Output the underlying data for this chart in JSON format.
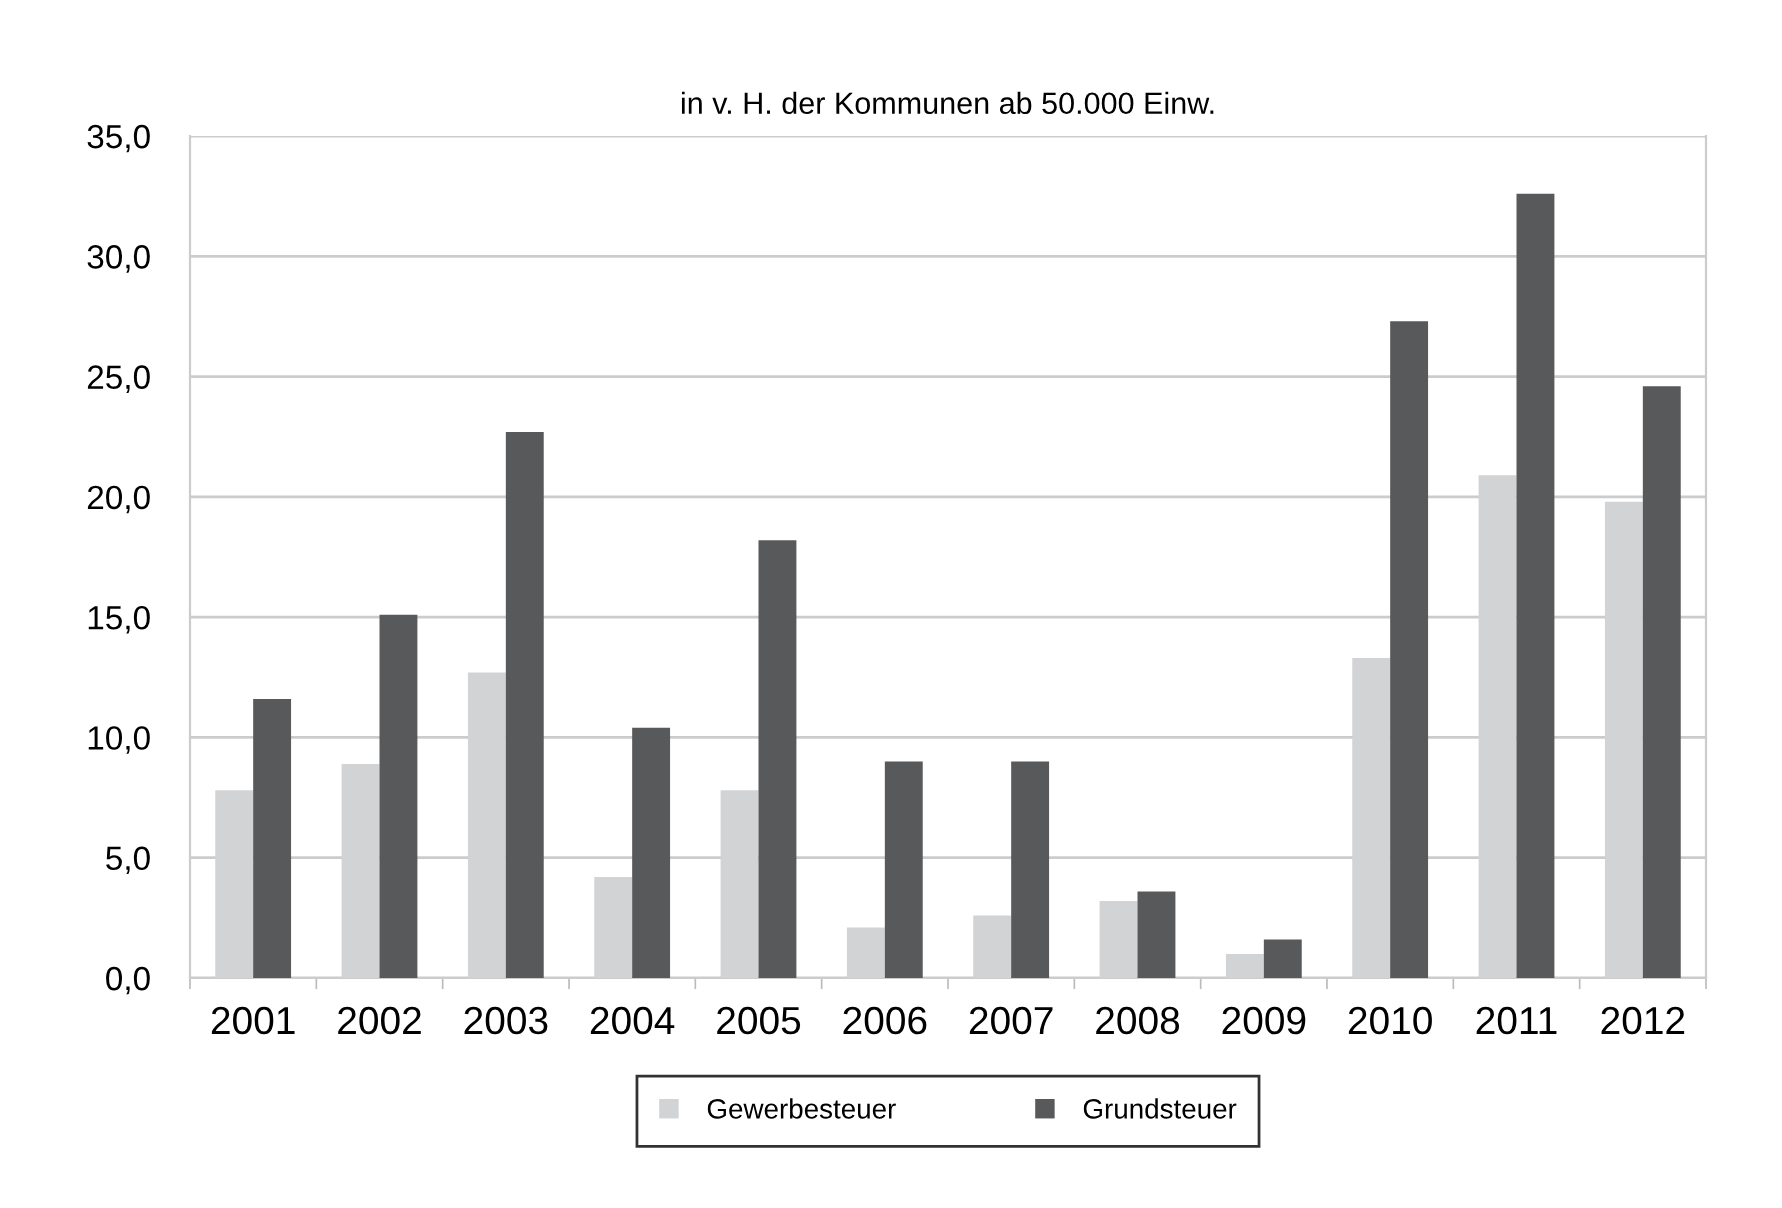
{
  "chart_data": {
    "type": "bar",
    "title": "in v. H. der Kommunen ab 50.000 Einw.",
    "categories": [
      "2001",
      "2002",
      "2003",
      "2004",
      "2005",
      "2006",
      "2007",
      "2008",
      "2009",
      "2010",
      "2011",
      "2012"
    ],
    "series": [
      {
        "name": "Gewerbesteuer",
        "color": "#d2d3d5",
        "values": [
          7.8,
          8.9,
          12.7,
          4.2,
          7.8,
          2.1,
          2.6,
          3.2,
          1.0,
          13.3,
          20.9,
          19.8
        ]
      },
      {
        "name": "Grundsteuer",
        "color": "#58595b",
        "values": [
          11.6,
          15.1,
          22.7,
          10.4,
          18.2,
          9.0,
          9.0,
          3.6,
          1.6,
          27.3,
          32.6,
          24.6
        ]
      }
    ],
    "ylim": [
      0,
      35
    ],
    "yticks": [
      {
        "value": 0,
        "label": "0,0"
      },
      {
        "value": 5,
        "label": "5,0"
      },
      {
        "value": 10,
        "label": "10,0"
      },
      {
        "value": 15,
        "label": "15,0"
      },
      {
        "value": 20,
        "label": "20,0"
      },
      {
        "value": 25,
        "label": "25,0"
      },
      {
        "value": 30,
        "label": "30,0"
      },
      {
        "value": 35,
        "label": "35,0"
      }
    ],
    "grid": "y",
    "legend": "bottom"
  }
}
